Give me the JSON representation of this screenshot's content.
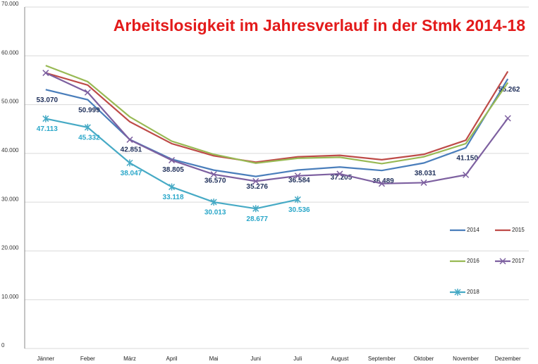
{
  "chart_data": {
    "type": "line",
    "title": "Arbeitslosigkeit im Jahresverlauf in der Stmk 2014-18",
    "title_color": "#e31b1b",
    "categories": [
      "Jänner",
      "Feber",
      "März",
      "April",
      "Mai",
      "Juni",
      "Juli",
      "August",
      "September",
      "Oktober",
      "November",
      "Dezember"
    ],
    "ylim": [
      0,
      70000
    ],
    "yticks": [
      {
        "value": 0,
        "label": "0"
      },
      {
        "value": 10000,
        "label": "10.000"
      },
      {
        "value": 20000,
        "label": "20.000"
      },
      {
        "value": 30000,
        "label": "30.000"
      },
      {
        "value": 40000,
        "label": "40.000"
      },
      {
        "value": 50000,
        "label": "50.000"
      },
      {
        "value": 60000,
        "label": "60.000"
      },
      {
        "value": 70000,
        "label": "70.000"
      }
    ],
    "grid": true,
    "legend": "lower right",
    "series": [
      {
        "name": "2014",
        "color": "#4a7ebb",
        "label_color": "#1f2f5a",
        "values": [
          53070,
          50999,
          42851,
          38805,
          36570,
          35276,
          36584,
          37205,
          36489,
          38031,
          41150,
          55262
        ],
        "value_labels": [
          "53.070",
          "50.999",
          "42.851",
          "38.805",
          "36.570",
          "35.276",
          "36.584",
          "37.205",
          "36.489",
          "38.031",
          "41.150",
          "55.262"
        ]
      },
      {
        "name": "2015",
        "color": "#be4b48",
        "values": [
          56500,
          54000,
          46500,
          42000,
          39500,
          38200,
          39300,
          39600,
          38700,
          39800,
          42700,
          56800
        ]
      },
      {
        "name": "2016",
        "color": "#98b954",
        "values": [
          58000,
          54700,
          47500,
          42500,
          39800,
          38000,
          39000,
          39200,
          37900,
          39300,
          42000,
          54500
        ]
      },
      {
        "name": "2017",
        "color": "#7d60a0",
        "marker": "x",
        "values": [
          56500,
          52500,
          42800,
          38600,
          35700,
          34300,
          35400,
          35800,
          33800,
          34000,
          35600,
          47200
        ]
      },
      {
        "name": "2018",
        "color": "#46aac5",
        "marker": "star",
        "label_color": "#2aa7c9",
        "values": [
          47113,
          45332,
          38047,
          33118,
          30013,
          28677,
          30536,
          null,
          null,
          null,
          null,
          null
        ],
        "value_labels": [
          "47.113",
          "45.332",
          "38.047",
          "33.118",
          "30.013",
          "28.677",
          "30.536",
          null,
          null,
          null,
          null,
          null
        ]
      }
    ]
  }
}
